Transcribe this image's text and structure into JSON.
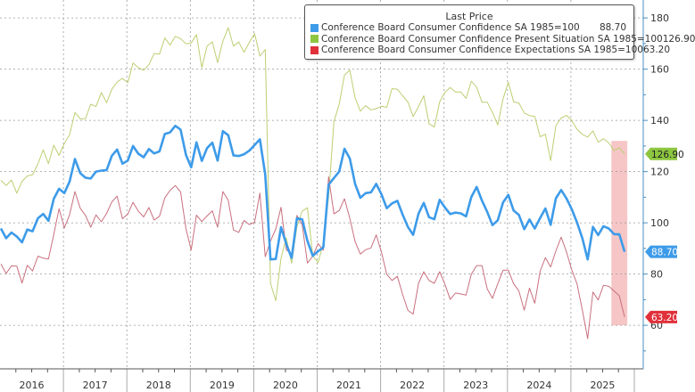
{
  "chart_data": {
    "type": "line",
    "title": "",
    "xlabel": "",
    "ylabel": "",
    "x_start": "2016-01",
    "x_end": "2025-11",
    "frequency": "monthly",
    "x_tick_labels": [
      "2016",
      "2017",
      "2018",
      "2019",
      "2020",
      "2021",
      "2022",
      "2023",
      "2024",
      "2025"
    ],
    "y_axis_side": "right",
    "ylim": [
      43,
      187
    ],
    "y_ticks": [
      60,
      80,
      100,
      120,
      140,
      160,
      180
    ],
    "grid": true,
    "legend_placement": "top-right",
    "legend_title": "Last Price",
    "highlight": {
      "from": "2025-09",
      "to": "2025-11",
      "ymin": 60,
      "ymax": 132,
      "color": "#f4b8b8"
    },
    "series": [
      {
        "name": "Conference Board Consumer Confidence SA 1985=100",
        "last": "88.70",
        "color": "#3d9be9",
        "tag_color": "#3d9be9",
        "values": [
          97.8,
          94.0,
          96.2,
          94.7,
          92.4,
          97.4,
          96.7,
          101.8,
          103.5,
          100.8,
          109.4,
          113.3,
          111.6,
          116.1,
          124.9,
          119.4,
          117.6,
          117.3,
          120.0,
          120.4,
          120.6,
          126.2,
          128.6,
          123.1,
          124.3,
          130.0,
          127.0,
          125.6,
          128.8,
          127.1,
          127.9,
          134.7,
          135.3,
          137.9,
          136.4,
          126.6,
          121.7,
          131.4,
          124.2,
          129.2,
          131.3,
          124.3,
          135.8,
          134.2,
          126.3,
          126.1,
          126.8,
          128.2,
          130.4,
          132.6,
          118.8,
          85.7,
          85.9,
          98.3,
          91.7,
          86.3,
          101.8,
          101.4,
          92.9,
          87.1,
          88.9,
          90.4,
          114.9,
          117.5,
          120.0,
          128.9,
          125.1,
          115.2,
          109.8,
          111.6,
          111.9,
          115.2,
          111.1,
          105.7,
          107.6,
          108.6,
          103.2,
          98.4,
          95.3,
          103.6,
          107.8,
          102.2,
          101.4,
          109.0,
          106.0,
          103.4,
          104.0,
          103.7,
          102.5,
          110.1,
          114.0,
          108.7,
          104.3,
          99.1,
          101.0,
          108.0,
          110.9,
          104.8,
          103.1,
          97.5,
          101.3,
          97.8,
          101.9,
          105.6,
          99.2,
          109.6,
          112.8,
          109.5,
          105.3,
          100.1,
          93.9,
          85.7,
          98.4,
          95.2,
          98.7,
          97.8,
          95.6,
          95.5,
          88.7
        ]
      },
      {
        "name": "Conference Board Consumer Confidence Present Situation SA 1985=100",
        "last": "126.90",
        "color": "#bccf72",
        "tag_color": "#8dc63f",
        "values": [
          116.6,
          114.6,
          116.7,
          111.6,
          116.2,
          118.3,
          118.8,
          123.0,
          128.5,
          123.1,
          130.3,
          126.3,
          131.0,
          134.4,
          143.1,
          140.6,
          140.7,
          146.3,
          145.4,
          150.9,
          146.9,
          152.2,
          155.0,
          156.4,
          154.7,
          162.4,
          160.6,
          159.6,
          161.7,
          166.1,
          165.9,
          172.2,
          169.4,
          172.8,
          171.9,
          169.9,
          170.2,
          173.5,
          160.6,
          169.0,
          170.7,
          162.6,
          170.9,
          176.2,
          169.0,
          170.6,
          166.6,
          170.5,
          173.9,
          165.1,
          167.7,
          76.4,
          69.6,
          86.2,
          94.2,
          84.2,
          98.5,
          104.6,
          105.9,
          87.2,
          84.4,
          92.0,
          110.0,
          139.6,
          146.3,
          157.7,
          159.6,
          148.8,
          143.6,
          145.7,
          144.1,
          144.6,
          145.5,
          145.1,
          152.4,
          152.2,
          149.6,
          147.2,
          141.5,
          145.4,
          149.6,
          138.7,
          137.4,
          147.2,
          150.9,
          152.8,
          151.1,
          151.1,
          148.6,
          155.3,
          153.0,
          147.1,
          147.1,
          143.1,
          138.2,
          148.5,
          154.9,
          147.2,
          146.8,
          142.9,
          141.9,
          141.5,
          133.6,
          134.6,
          124.3,
          138.0,
          140.9,
          142.0,
          139.9,
          136.5,
          134.5,
          133.5,
          135.9,
          131.5,
          132.8,
          131.2,
          128.2,
          129.3,
          126.9
        ]
      },
      {
        "name": "Conference Board Consumer Confidence Expectations SA 1985=100",
        "last": "63.20",
        "color": "#c9707e",
        "tag_color": "#e0303a",
        "values": [
          83.9,
          80.2,
          83.2,
          83.1,
          76.5,
          83.4,
          81.2,
          87.0,
          86.2,
          85.9,
          95.5,
          105.5,
          98.0,
          103.2,
          112.2,
          105.7,
          102.9,
          98.3,
          103.1,
          100.4,
          103.7,
          108.2,
          110.4,
          101.6,
          103.4,
          108.0,
          104.6,
          102.3,
          106.0,
          101.1,
          102.6,
          109.7,
          112.7,
          114.6,
          112.1,
          97.8,
          89.4,
          103.0,
          100.5,
          102.7,
          104.7,
          98.3,
          112.2,
          108.8,
          97.2,
          96.3,
          100.9,
          99.3,
          100.3,
          111.6,
          86.8,
          92.9,
          97.6,
          106.1,
          89.5,
          87.6,
          102.9,
          99.3,
          84.3,
          87.0,
          91.9,
          89.3,
          118.0,
          103.5,
          104.8,
          109.4,
          101.8,
          92.7,
          87.8,
          89.5,
          90.2,
          95.3,
          88.5,
          79.9,
          77.5,
          79.1,
          72.0,
          65.8,
          64.4,
          76.4,
          80.9,
          77.5,
          76.4,
          80.9,
          76.0,
          70.1,
          72.6,
          72.2,
          71.8,
          80.0,
          83.3,
          83.3,
          74.2,
          70.5,
          76.2,
          81.5,
          81.5,
          76.2,
          73.4,
          65.9,
          74.5,
          68.6,
          81.1,
          86.4,
          82.8,
          89.1,
          94.4,
          88.6,
          81.6,
          76.1,
          65.8,
          54.8,
          73.0,
          69.9,
          75.6,
          75.2,
          73.4,
          71.5,
          63.2
        ]
      }
    ]
  }
}
